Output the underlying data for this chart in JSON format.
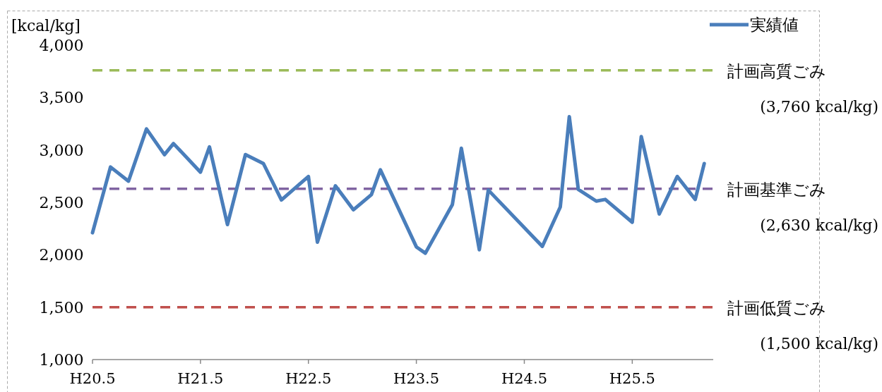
{
  "chart_data": {
    "type": "line",
    "ylabel": "[kcal/kg]",
    "categories": [
      "H20.5",
      null,
      null,
      null,
      null,
      null,
      null,
      null,
      null,
      null,
      null,
      null,
      "H21.5",
      null,
      null,
      null,
      null,
      null,
      null,
      null,
      null,
      null,
      null,
      null,
      "H22.5",
      null,
      null,
      null,
      null,
      null,
      null,
      null,
      null,
      null,
      null,
      null,
      "H23.5",
      null,
      null,
      null,
      null,
      null,
      null,
      null,
      null,
      null,
      null,
      null,
      "H24.5",
      null,
      null,
      null,
      null,
      null,
      null,
      null,
      null,
      null,
      null,
      null,
      "H25.5",
      null,
      null,
      null,
      null,
      null,
      null,
      null,
      null
    ],
    "ylim": [
      1000,
      4000
    ],
    "yticks": [
      {
        "value": 1000,
        "label": "1,000"
      },
      {
        "value": 1500,
        "label": "1,500"
      },
      {
        "value": 2000,
        "label": "2,000"
      },
      {
        "value": 2500,
        "label": "2,500"
      },
      {
        "value": 3000,
        "label": "3,000"
      },
      {
        "value": 3500,
        "label": "3,500"
      },
      {
        "value": 4000,
        "label": "4,000"
      }
    ],
    "series": [
      {
        "name": "実績値",
        "color": "#4a7ebb",
        "values": [
          2210,
          null,
          2837,
          null,
          2702,
          null,
          3200,
          null,
          2955,
          3061,
          null,
          null,
          2788,
          3029,
          null,
          2288,
          null,
          2956,
          null,
          2870,
          null,
          2523,
          null,
          null,
          2747,
          2120,
          null,
          2658,
          null,
          2429,
          null,
          2573,
          2810,
          null,
          null,
          null,
          2075,
          2015,
          null,
          null,
          2478,
          3016,
          null,
          2048,
          2617,
          null,
          null,
          null,
          null,
          null,
          2080,
          null,
          2456,
          3318,
          2624,
          null,
          2512,
          2528,
          null,
          null,
          2310,
          3128,
          null,
          2389,
          null,
          2747,
          null,
          2528,
          2870
        ]
      }
    ],
    "ref_lines": [
      {
        "axis": "y",
        "value": 3760,
        "label": "計画高質ごみ\n(3,760 kcal/kg)",
        "color": "#9bbb59",
        "line_style": "dashed"
      },
      {
        "axis": "y",
        "value": 2630,
        "label": "計画基準ごみ\n(2,630 kcal/kg)",
        "color": "#8064a2",
        "line_style": "dashed"
      },
      {
        "axis": "y",
        "value": 1500,
        "label": "計画低質ごみ\n(1,500 kcal/kg)",
        "color": "#c0504d",
        "line_style": "dashed"
      }
    ],
    "legend": "top right",
    "grid": false,
    "marker": "none",
    "line_style": "solid"
  }
}
